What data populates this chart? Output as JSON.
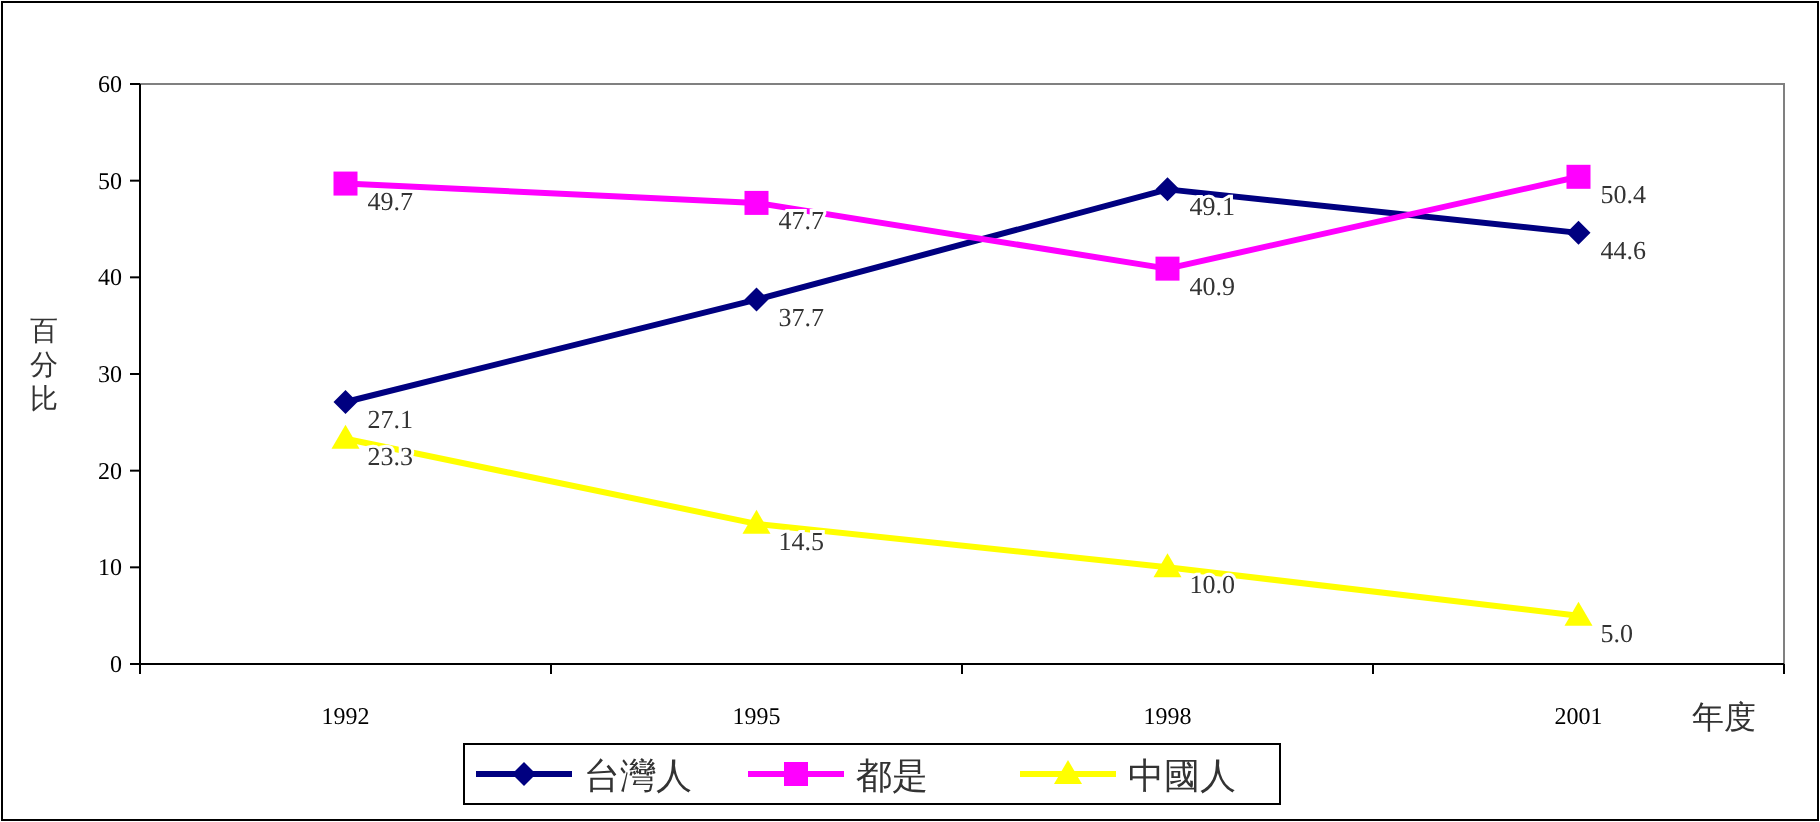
{
  "chart_data": {
    "type": "line",
    "xlabel": "年度",
    "ylabel": "百分比",
    "categories": [
      "1992",
      "1995",
      "1998",
      "2001"
    ],
    "series": [
      {
        "name": "台灣人",
        "color": "#000080",
        "marker": "diamond",
        "values": [
          27.1,
          37.7,
          49.1,
          44.6
        ],
        "value_labels": [
          "27.1",
          "37.7",
          "49.1",
          "44.6"
        ]
      },
      {
        "name": "都是",
        "color": "#ff00ff",
        "marker": "square",
        "values": [
          49.7,
          47.7,
          40.9,
          50.4
        ],
        "value_labels": [
          "49.7",
          "47.7",
          "40.9",
          "50.4"
        ]
      },
      {
        "name": "中國人",
        "color": "#ffff00",
        "marker": "triangle",
        "values": [
          23.3,
          14.5,
          10.0,
          5.0
        ],
        "value_labels": [
          "23.3",
          "14.5",
          "10.0",
          "5.0"
        ]
      }
    ],
    "ylim": [
      0,
      60
    ],
    "yticks": [
      0,
      10,
      20,
      30,
      40,
      50,
      60
    ],
    "grid": false,
    "legend": "bottom"
  }
}
